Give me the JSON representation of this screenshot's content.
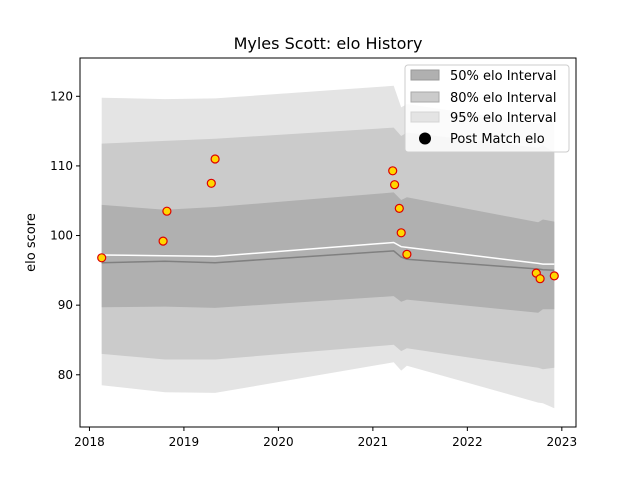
{
  "chart_data": {
    "type": "line",
    "title": "Myles Scott: elo History",
    "xlabel": "",
    "ylabel": "elo score",
    "xlim": [
      2017.9,
      2023.15
    ],
    "ylim": [
      72.5,
      125.5
    ],
    "xticks": [
      2018,
      2019,
      2020,
      2021,
      2022,
      2023
    ],
    "xtick_labels": [
      "2018",
      "2019",
      "2020",
      "2021",
      "2022",
      "2023"
    ],
    "yticks": [
      80,
      90,
      100,
      110,
      120
    ],
    "ytick_labels": [
      "80",
      "90",
      "100",
      "110",
      "120"
    ],
    "grid": false,
    "legend_position": "top-right",
    "legend": [
      {
        "label": "50% elo Interval",
        "kind": "band50"
      },
      {
        "label": "80% elo Interval",
        "kind": "band80"
      },
      {
        "label": "95% elo Interval",
        "kind": "band95"
      },
      {
        "label": "Post Match elo",
        "kind": "marker"
      }
    ],
    "colors": {
      "band50": "#b0b0b0",
      "band80": "#cbcbcb",
      "band95": "#e4e4e4",
      "median_line": "#808080",
      "mean_line": "#ffffff",
      "marker_fill": "#ffd700",
      "marker_edge": "#dd0000",
      "legend_marker": "#000000"
    },
    "x": [
      2018.13,
      2018.8,
      2019.33,
      2021.22,
      2021.3,
      2021.36,
      2022.75,
      2022.8,
      2022.92
    ],
    "band95_upper": [
      119.8,
      119.6,
      119.7,
      121.5,
      118.4,
      118.9,
      116.1,
      116.8,
      116.3
    ],
    "band95_lower": [
      78.5,
      77.5,
      77.4,
      81.8,
      80.6,
      81.3,
      76.0,
      75.9,
      75.2
    ],
    "band80_upper": [
      113.2,
      113.6,
      113.9,
      115.5,
      114.3,
      114.8,
      112.6,
      113.0,
      111.9
    ],
    "band80_lower": [
      83.0,
      82.2,
      82.2,
      84.3,
      83.4,
      83.8,
      81.0,
      80.8,
      81.0
    ],
    "band50_upper": [
      104.4,
      103.7,
      104.1,
      106.2,
      105.1,
      105.5,
      101.9,
      102.3,
      102.0
    ],
    "band50_lower": [
      89.7,
      89.8,
      89.6,
      91.3,
      90.5,
      90.8,
      88.9,
      89.4,
      89.4
    ],
    "median": [
      96.1,
      96.3,
      96.1,
      97.8,
      96.9,
      96.6,
      95.2,
      95.1,
      95.0
    ],
    "mean": [
      97.2,
      97.1,
      97.0,
      99.0,
      98.4,
      98.3,
      96.0,
      95.9,
      95.9
    ],
    "post_match_elo": [
      {
        "x": 2018.13,
        "y": 96.8
      },
      {
        "x": 2018.78,
        "y": 99.2
      },
      {
        "x": 2018.82,
        "y": 103.5
      },
      {
        "x": 2019.29,
        "y": 107.5
      },
      {
        "x": 2019.33,
        "y": 111.0
      },
      {
        "x": 2021.21,
        "y": 109.3
      },
      {
        "x": 2021.23,
        "y": 107.3
      },
      {
        "x": 2021.28,
        "y": 103.9
      },
      {
        "x": 2021.3,
        "y": 100.4
      },
      {
        "x": 2021.36,
        "y": 97.3
      },
      {
        "x": 2022.73,
        "y": 94.6
      },
      {
        "x": 2022.77,
        "y": 93.8
      },
      {
        "x": 2022.92,
        "y": 94.2
      }
    ]
  }
}
